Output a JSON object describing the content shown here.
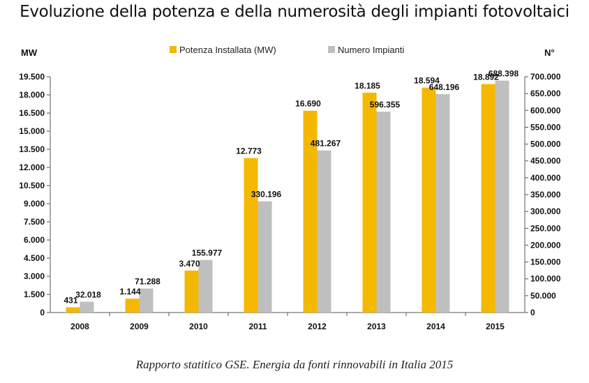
{
  "chart_data": {
    "type": "bar",
    "title": "Evoluzione della potenza e della numerosità degli impianti fotovoltaici",
    "categories": [
      "2008",
      "2009",
      "2010",
      "2011",
      "2012",
      "2013",
      "2014",
      "2015"
    ],
    "series": [
      {
        "name": "Potenza Installata (MW)",
        "axis": "left",
        "color": "#F5B800",
        "values": [
          431,
          1144,
          3470,
          12773,
          16690,
          18185,
          18594,
          18892
        ],
        "labels": [
          "431",
          "1.144",
          "3.470",
          "12.773",
          "16.690",
          "18.185",
          "18.594",
          "18.892"
        ]
      },
      {
        "name": "Numero Impianti",
        "axis": "right",
        "color": "#BFBFBF",
        "values": [
          32018,
          71288,
          155977,
          330196,
          481267,
          596355,
          648196,
          688398
        ],
        "labels": [
          "32.018",
          "71.288",
          "155.977",
          "330.196",
          "481.267",
          "596.355",
          "648.196",
          "688.398"
        ]
      }
    ],
    "y_left": {
      "label": "MW",
      "ylim": [
        0,
        19500
      ],
      "ticks": [
        0,
        1500,
        3000,
        4500,
        6000,
        7500,
        9000,
        10500,
        12000,
        13500,
        15000,
        16500,
        18000,
        19500
      ],
      "tick_labels": [
        "0",
        "1.500",
        "3.000",
        "4.500",
        "6.000",
        "7.500",
        "9.000",
        "10.500",
        "12.000",
        "13.500",
        "15.000",
        "16.500",
        "18.000",
        "19.500"
      ]
    },
    "y_right": {
      "label": "N°",
      "ylim": [
        0,
        700000
      ],
      "ticks": [
        0,
        50000,
        100000,
        150000,
        200000,
        250000,
        300000,
        350000,
        400000,
        450000,
        500000,
        550000,
        600000,
        650000,
        700000
      ],
      "tick_labels": [
        "0",
        "50.000",
        "100.000",
        "150.000",
        "200.000",
        "250.000",
        "300.000",
        "350.000",
        "400.000",
        "450.000",
        "500.000",
        "550.000",
        "600.000",
        "650.000",
        "700.000"
      ]
    },
    "legend_position": "top-center",
    "grid": false
  },
  "caption": "Rapporto statitico GSE. Energia da fonti rinnovabili in Italia 2015"
}
